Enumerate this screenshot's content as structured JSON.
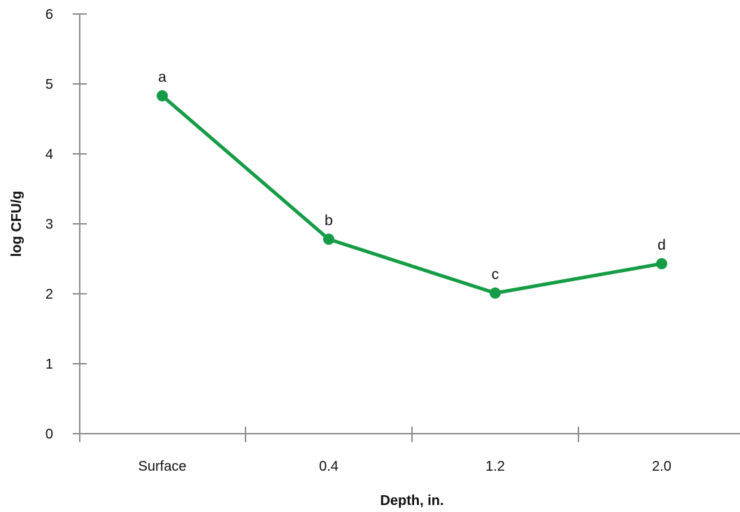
{
  "chart_data": {
    "type": "line",
    "title": "",
    "xlabel": "Depth, in.",
    "ylabel": "log CFU/g",
    "categories": [
      "Surface",
      "0.4",
      "1.2",
      "2.0"
    ],
    "ylim": [
      0,
      6
    ],
    "yticks": [
      0,
      1,
      2,
      3,
      4,
      5,
      6
    ],
    "grid": false,
    "legend": "none",
    "series": [
      {
        "values": [
          4.83,
          2.78,
          2.01,
          2.43
        ],
        "labels": [
          "a",
          "b",
          "c",
          "d"
        ],
        "color": "#169c46"
      }
    ]
  }
}
